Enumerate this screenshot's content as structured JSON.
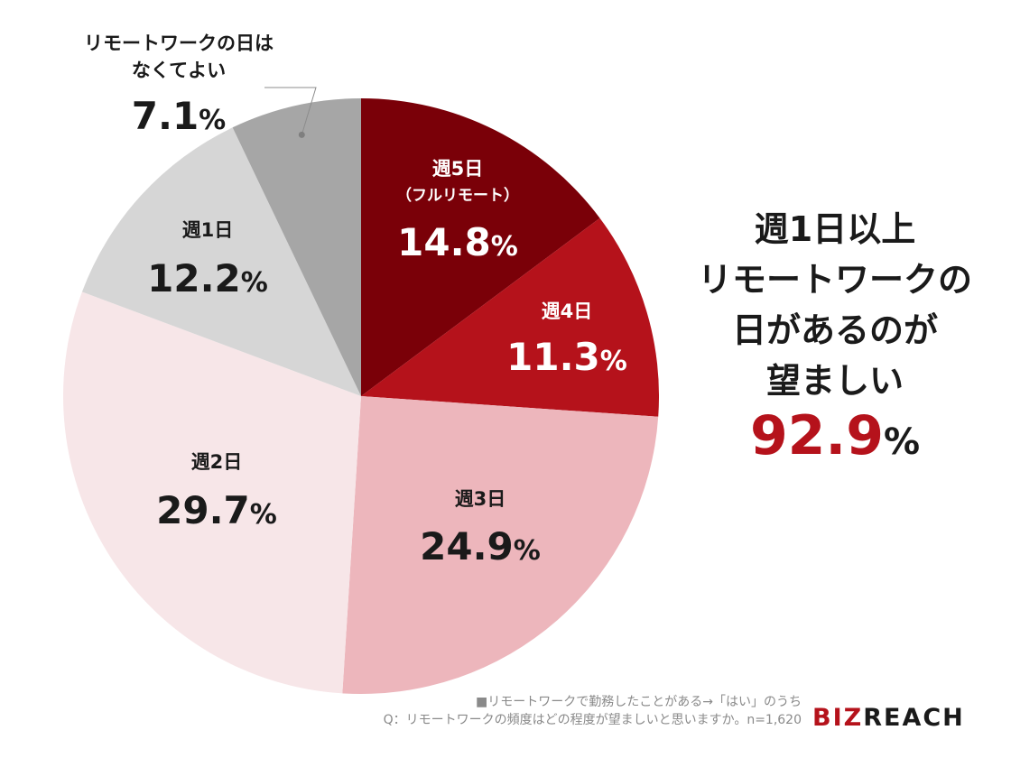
{
  "chart_data": {
    "type": "pie",
    "slices": [
      {
        "name": "週5日",
        "sub": "（フルリモート）",
        "value": 14.8,
        "label": "14.8",
        "color": "#7a0008",
        "text_color": "#ffffff"
      },
      {
        "name": "週4日",
        "value": 11.3,
        "label": "11.3",
        "color": "#b5121b",
        "text_color": "#ffffff"
      },
      {
        "name": "週3日",
        "value": 24.9,
        "label": "24.9",
        "color": "#edb6bc",
        "text_color": "#1a1a1a"
      },
      {
        "name": "週2日",
        "value": 29.7,
        "label": "29.7",
        "color": "#f7e6e8",
        "text_color": "#1a1a1a"
      },
      {
        "name": "週1日",
        "value": 12.2,
        "label": "12.2",
        "color": "#d6d6d6",
        "text_color": "#1a1a1a"
      },
      {
        "name": "リモートワークの日は",
        "name2": "なくてよい",
        "value": 7.1,
        "label": "7.1",
        "color": "#a6a6a6",
        "text_color": "#1a1a1a"
      }
    ],
    "unit": "%",
    "start_angle_deg": 0,
    "direction": "clockwise"
  },
  "headline": {
    "lines": [
      "週1日以上",
      "リモートワークの",
      "日があるのが",
      "望ましい"
    ],
    "total_value": "92.9",
    "total_unit": "%"
  },
  "footnote": {
    "line1": "■リモートワークで勤務したことがある→「はい」のうち",
    "line2": "Q：リモートワークの頻度はどの程度が望ましいと思いますか。n=1,620"
  },
  "logo": {
    "part1": "BIZ",
    "part2": "REACH"
  }
}
